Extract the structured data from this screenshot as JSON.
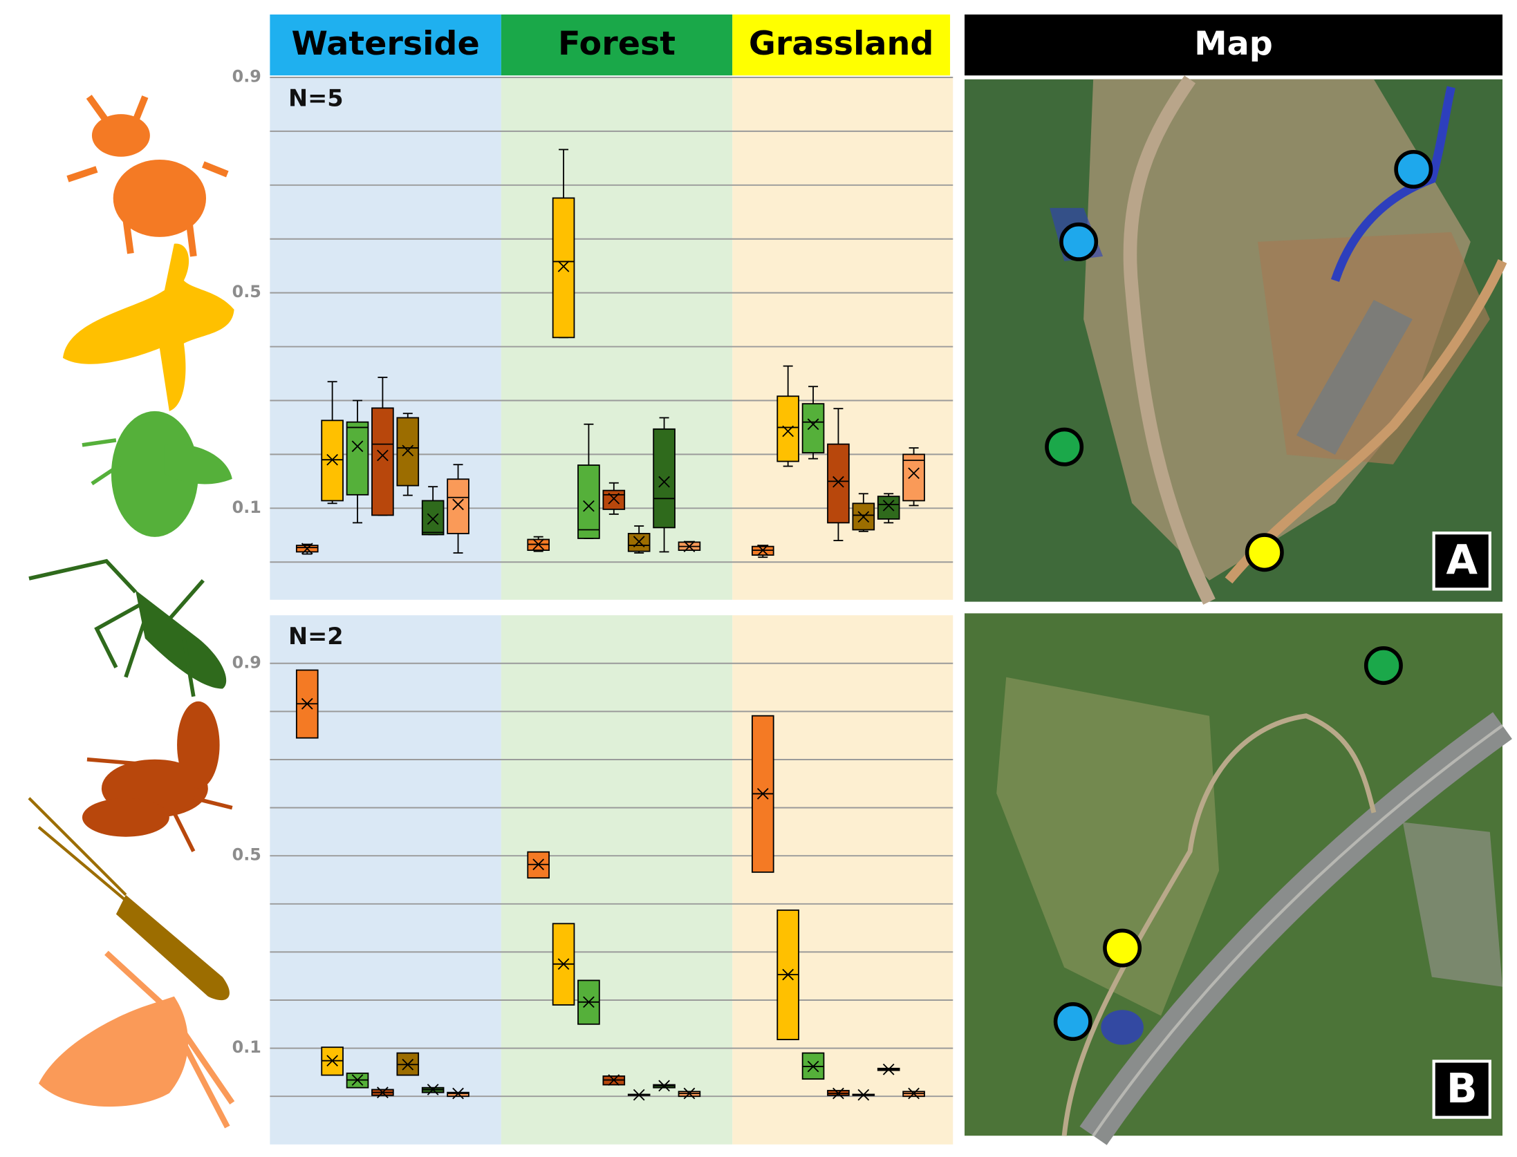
{
  "map_title": "Map",
  "chart_data": [
    {
      "type": "box",
      "title": "N=5",
      "categories": [
        "Waterside",
        "Forest",
        "Grassland"
      ],
      "ylim": [
        -0.07,
        0.9
      ],
      "yticks": [
        0.1,
        0.5,
        0.9
      ],
      "minor_yticks": [
        0,
        0.2,
        0.3,
        0.4,
        0.6,
        0.7,
        0.8
      ],
      "grid": true,
      "series": [
        {
          "color": "#f47a24",
          "boxes": [
            {
              "min": 0.015,
              "q1": 0.019,
              "median": 0.027,
              "q3": 0.031,
              "max": 0.033,
              "mean": 0.025
            },
            {
              "min": 0.02,
              "q1": 0.022,
              "median": 0.033,
              "q3": 0.042,
              "max": 0.047,
              "mean": 0.033
            },
            {
              "min": 0.009,
              "q1": 0.013,
              "median": 0.022,
              "q3": 0.029,
              "max": 0.031,
              "mean": 0.022
            }
          ]
        },
        {
          "color": "#ffc000",
          "boxes": [
            {
              "min": 0.109,
              "q1": 0.114,
              "median": 0.19,
              "q3": 0.263,
              "max": 0.335,
              "mean": 0.19
            },
            {
              "min": 0.417,
              "q1": 0.417,
              "median": 0.558,
              "q3": 0.676,
              "max": 0.766,
              "mean": 0.549
            },
            {
              "min": 0.178,
              "q1": 0.187,
              "median": 0.25,
              "q3": 0.308,
              "max": 0.364,
              "mean": 0.243
            }
          ]
        },
        {
          "color": "#55b03a",
          "boxes": [
            {
              "min": 0.073,
              "q1": 0.125,
              "median": 0.25,
              "q3": 0.26,
              "max": 0.3,
              "mean": 0.215
            },
            {
              "min": 0.044,
              "q1": 0.044,
              "median": 0.06,
              "q3": 0.18,
              "max": 0.256,
              "mean": 0.104
            },
            {
              "min": 0.192,
              "q1": 0.203,
              "median": 0.26,
              "q3": 0.294,
              "max": 0.326,
              "mean": 0.256
            }
          ]
        },
        {
          "color": "#b8470c",
          "boxes": [
            {
              "min": 0.087,
              "q1": 0.087,
              "median": 0.219,
              "q3": 0.286,
              "max": 0.343,
              "mean": 0.198
            },
            {
              "min": 0.089,
              "q1": 0.098,
              "median": 0.125,
              "q3": 0.133,
              "max": 0.147,
              "mean": 0.118
            },
            {
              "min": 0.04,
              "q1": 0.073,
              "median": 0.15,
              "q3": 0.219,
              "max": 0.285,
              "mean": 0.149
            }
          ]
        },
        {
          "color": "#9c6d00",
          "boxes": [
            {
              "min": 0.124,
              "q1": 0.142,
              "median": 0.212,
              "q3": 0.268,
              "max": 0.276,
              "mean": 0.207
            },
            {
              "min": 0.017,
              "q1": 0.02,
              "median": 0.031,
              "q3": 0.053,
              "max": 0.067,
              "mean": 0.038
            },
            {
              "min": 0.057,
              "q1": 0.06,
              "median": 0.087,
              "q3": 0.109,
              "max": 0.127,
              "mean": 0.084
            }
          ]
        },
        {
          "color": "#2f6a1c",
          "boxes": [
            {
              "min": 0.051,
              "q1": 0.051,
              "median": 0.055,
              "q3": 0.114,
              "max": 0.14,
              "mean": 0.08
            },
            {
              "min": 0.019,
              "q1": 0.064,
              "median": 0.118,
              "q3": 0.247,
              "max": 0.268,
              "mean": 0.149
            },
            {
              "min": 0.073,
              "q1": 0.08,
              "median": 0.107,
              "q3": 0.122,
              "max": 0.127,
              "mean": 0.105
            }
          ]
        },
        {
          "color": "#fa9a58",
          "boxes": [
            {
              "min": 0.017,
              "q1": 0.053,
              "median": 0.12,
              "q3": 0.154,
              "max": 0.181,
              "mean": 0.107
            },
            {
              "min": 0.022,
              "q1": 0.022,
              "median": 0.029,
              "q3": 0.037,
              "max": 0.038,
              "mean": 0.029
            },
            {
              "min": 0.105,
              "q1": 0.114,
              "median": 0.189,
              "q3": 0.2,
              "max": 0.212,
              "mean": 0.165
            }
          ]
        }
      ]
    },
    {
      "type": "box",
      "title": "N=2",
      "ylim": [
        -0.1,
        1.0
      ],
      "yticks": [
        0.1,
        0.5,
        0.9
      ],
      "minor_yticks": [
        0,
        0.2,
        0.3,
        0.4,
        0.6,
        0.7,
        0.8
      ],
      "grid": true,
      "series": [
        {
          "color": "#f47a24",
          "boxes": [
            {
              "q1": 0.745,
              "median": 0.816,
              "q3": 0.886,
              "mean": 0.816
            },
            {
              "q1": 0.454,
              "median": 0.482,
              "q3": 0.508,
              "mean": 0.482
            },
            {
              "q1": 0.466,
              "median": 0.629,
              "q3": 0.791,
              "mean": 0.629
            }
          ]
        },
        {
          "color": "#ffc000",
          "boxes": [
            {
              "q1": 0.044,
              "median": 0.074,
              "q3": 0.102,
              "mean": 0.074
            },
            {
              "q1": 0.19,
              "median": 0.275,
              "q3": 0.359,
              "mean": 0.275
            },
            {
              "q1": 0.118,
              "median": 0.253,
              "q3": 0.387,
              "mean": 0.253
            }
          ]
        },
        {
          "color": "#55b03a",
          "boxes": [
            {
              "q1": 0.018,
              "median": 0.034,
              "q3": 0.048,
              "mean": 0.034
            },
            {
              "q1": 0.15,
              "median": 0.196,
              "q3": 0.241,
              "mean": 0.196
            },
            {
              "q1": 0.036,
              "median": 0.062,
              "q3": 0.09,
              "mean": 0.062
            }
          ]
        },
        {
          "color": "#b8470c",
          "boxes": [
            {
              "q1": 0.002,
              "median": 0.008,
              "q3": 0.014,
              "mean": 0.008
            },
            {
              "q1": 0.024,
              "median": 0.034,
              "q3": 0.042,
              "mean": 0.034
            },
            {
              "q1": 0.002,
              "median": 0.006,
              "q3": 0.012,
              "mean": 0.006
            }
          ]
        },
        {
          "color": "#9c6d00",
          "boxes": [
            {
              "q1": 0.044,
              "median": 0.066,
              "q3": 0.09,
              "mean": 0.066
            },
            {
              "q1": 0.002,
              "median": 0.003,
              "q3": 0.004,
              "mean": 0.003
            },
            {
              "q1": 0.002,
              "median": 0.003,
              "q3": 0.004,
              "mean": 0.003
            }
          ]
        },
        {
          "color": "#2f6a1c",
          "boxes": [
            {
              "q1": 0.008,
              "median": 0.014,
              "q3": 0.018,
              "mean": 0.014
            },
            {
              "q1": 0.018,
              "median": 0.022,
              "q3": 0.024,
              "mean": 0.022
            },
            {
              "q1": 0.054,
              "median": 0.056,
              "q3": 0.058,
              "mean": 0.056
            }
          ]
        },
        {
          "color": "#fa9a58",
          "boxes": [
            {
              "q1": 0.0,
              "median": 0.006,
              "q3": 0.008,
              "mean": 0.006
            },
            {
              "q1": 0.0,
              "median": 0.006,
              "q3": 0.01,
              "mean": 0.006
            },
            {
              "q1": 0.0,
              "median": 0.006,
              "q3": 0.01,
              "mean": 0.006
            }
          ]
        }
      ]
    }
  ],
  "maps": [
    {
      "label": "A"
    },
    {
      "label": "B"
    }
  ]
}
